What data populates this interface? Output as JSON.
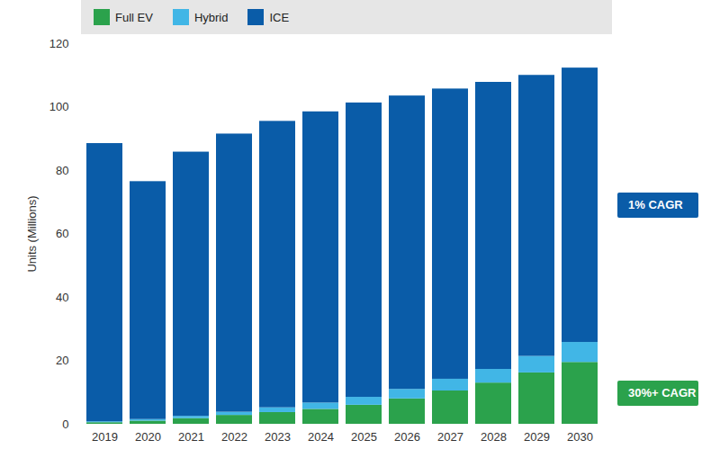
{
  "chart_data": {
    "type": "bar",
    "stacked": true,
    "categories": [
      "2019",
      "2020",
      "2021",
      "2022",
      "2023",
      "2024",
      "2025",
      "2026",
      "2027",
      "2028",
      "2029",
      "2030"
    ],
    "series": [
      {
        "name": "Full EV",
        "color": "#2ba24c",
        "values": [
          0.5,
          1.0,
          1.8,
          2.8,
          3.7,
          4.7,
          6.0,
          8.0,
          10.5,
          13.0,
          16.2,
          19.5
        ]
      },
      {
        "name": "Hybrid",
        "color": "#41b6e6",
        "values": [
          0.3,
          0.5,
          0.7,
          1.0,
          1.5,
          2.0,
          2.5,
          3.0,
          3.7,
          4.3,
          5.2,
          6.3
        ]
      },
      {
        "name": "ICE",
        "color": "#0a5ca8",
        "values": [
          87.7,
          75.0,
          83.3,
          87.7,
          90.3,
          91.8,
          92.8,
          92.5,
          91.5,
          90.5,
          88.6,
          86.5
        ]
      }
    ],
    "ylabel": "Units (Millions)",
    "ylim": [
      0,
      120
    ],
    "yticks": [
      0,
      20,
      40,
      60,
      80,
      100,
      120
    ],
    "grid": false,
    "legend": "top",
    "annotations": [
      {
        "text": "1% CAGR",
        "series": "ICE"
      },
      {
        "text": "30%+ CAGR",
        "series": "Full EV"
      }
    ]
  }
}
